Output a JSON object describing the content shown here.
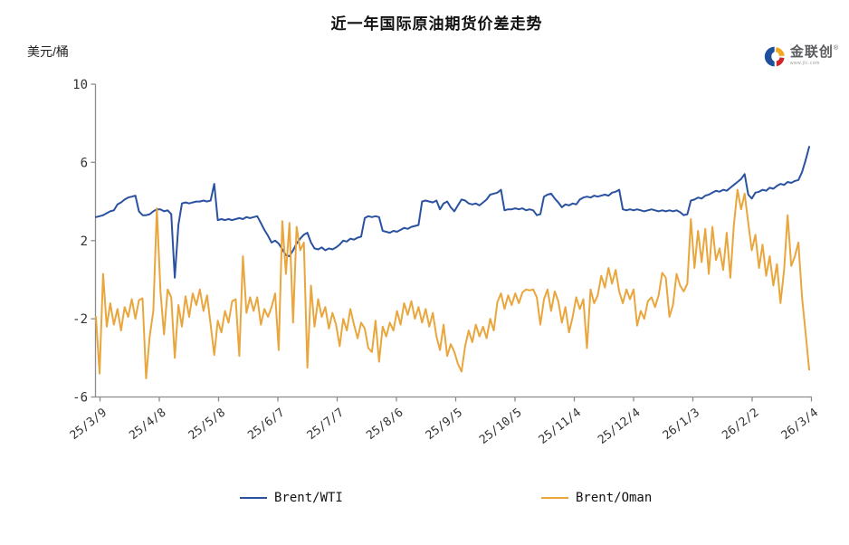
{
  "page": {
    "title": "近一年国际原油期货价差走势",
    "y_unit": "美元/桶"
  },
  "logo": {
    "brand": "金联创",
    "reg_mark": "®",
    "subtext": "www.jlc.com"
  },
  "chart_data": {
    "type": "line",
    "title": "近一年国际原油期货价差走势",
    "xlabel": "",
    "ylabel": "美元/桶",
    "ylim": [
      -6,
      10
    ],
    "yticks": [
      10,
      6,
      2,
      -2,
      -6
    ],
    "xticklabels": [
      "25/3/9",
      "25/4/8",
      "25/5/8",
      "25/6/7",
      "25/7/7",
      "25/8/6",
      "25/9/5",
      "25/10/5",
      "25/11/4",
      "25/12/4",
      "26/1/3",
      "26/2/2",
      "26/3/4"
    ],
    "grid": false,
    "legend_position": "bottom",
    "axis_color": "#8c8c8c",
    "tick_label_color": "#333333",
    "series": [
      {
        "name": "Brent/WTI",
        "color": "#2a52a0",
        "values": [
          3.2,
          3.25,
          3.3,
          3.4,
          3.5,
          3.55,
          3.85,
          3.95,
          4.1,
          4.2,
          4.25,
          4.3,
          3.5,
          3.3,
          3.3,
          3.35,
          3.5,
          3.6,
          3.6,
          3.5,
          3.55,
          3.35,
          0.1,
          2.8,
          3.9,
          3.95,
          3.9,
          3.95,
          4.0,
          4.0,
          4.05,
          4.0,
          4.05,
          4.9,
          3.05,
          3.1,
          3.05,
          3.1,
          3.05,
          3.1,
          3.15,
          3.1,
          3.2,
          3.15,
          3.2,
          3.25,
          2.9,
          2.55,
          2.25,
          1.9,
          2.0,
          1.85,
          1.55,
          1.25,
          1.2,
          1.5,
          1.85,
          2.1,
          2.3,
          2.4,
          1.9,
          1.6,
          1.55,
          1.65,
          1.5,
          1.6,
          1.55,
          1.65,
          1.8,
          2.0,
          1.95,
          2.1,
          2.05,
          2.15,
          2.2,
          3.15,
          3.25,
          3.2,
          3.25,
          3.2,
          2.5,
          2.45,
          2.4,
          2.5,
          2.45,
          2.55,
          2.65,
          2.6,
          2.7,
          2.75,
          2.8,
          4.0,
          4.05,
          4.0,
          3.95,
          4.05,
          3.6,
          3.9,
          4.0,
          3.7,
          3.5,
          3.8,
          4.1,
          4.05,
          3.9,
          3.85,
          3.9,
          3.8,
          3.95,
          4.1,
          4.35,
          4.4,
          4.45,
          4.6,
          3.55,
          3.6,
          3.6,
          3.65,
          3.6,
          3.65,
          3.55,
          3.6,
          3.55,
          3.3,
          3.35,
          4.25,
          4.35,
          4.4,
          4.15,
          3.95,
          3.7,
          3.85,
          3.8,
          3.9,
          3.85,
          4.1,
          4.2,
          4.25,
          4.2,
          4.3,
          4.25,
          4.3,
          4.35,
          4.3,
          4.45,
          4.5,
          4.6,
          3.6,
          3.55,
          3.6,
          3.55,
          3.6,
          3.55,
          3.5,
          3.55,
          3.6,
          3.55,
          3.5,
          3.55,
          3.5,
          3.55,
          3.5,
          3.55,
          3.45,
          3.3,
          3.35,
          4.05,
          4.1,
          4.2,
          4.15,
          4.3,
          4.35,
          4.45,
          4.55,
          4.5,
          4.6,
          4.55,
          4.7,
          4.85,
          5.0,
          5.15,
          5.4,
          4.35,
          4.15,
          4.45,
          4.5,
          4.6,
          4.55,
          4.7,
          4.65,
          4.8,
          4.9,
          4.85,
          5.0,
          4.95,
          5.05,
          5.1,
          5.5,
          6.1,
          6.8
        ]
      },
      {
        "name": "Brent/Oman",
        "color": "#e9a63c",
        "values": [
          -1.9,
          -4.8,
          0.3,
          -2.4,
          -1.2,
          -2.3,
          -1.5,
          -2.6,
          -1.4,
          -1.9,
          -1.0,
          -2.0,
          -1.05,
          -0.95,
          -5.05,
          -2.9,
          -1.6,
          3.65,
          -0.6,
          -2.8,
          -0.5,
          -0.9,
          -4.0,
          -1.3,
          -2.4,
          -0.85,
          -1.9,
          -0.7,
          -1.3,
          -0.5,
          -1.6,
          -0.8,
          -2.3,
          -3.85,
          -2.1,
          -2.7,
          -1.6,
          -2.2,
          -1.1,
          -1.0,
          -3.9,
          1.2,
          -1.7,
          -0.9,
          -1.6,
          -0.9,
          -2.3,
          -1.5,
          -1.9,
          -1.4,
          -0.7,
          -3.6,
          3.0,
          0.3,
          2.9,
          -2.2,
          2.7,
          1.5,
          1.9,
          -4.5,
          -0.3,
          -2.4,
          -1.0,
          -1.9,
          -1.4,
          -2.5,
          -1.7,
          -2.3,
          -3.4,
          -2.0,
          -2.6,
          -1.5,
          -2.3,
          -3.0,
          -2.2,
          -2.5,
          -3.5,
          -3.7,
          -2.1,
          -4.2,
          -2.4,
          -2.9,
          -2.2,
          -2.6,
          -1.6,
          -2.3,
          -1.2,
          -1.8,
          -1.1,
          -2.0,
          -1.4,
          -2.2,
          -1.5,
          -2.4,
          -1.7,
          -2.9,
          -3.6,
          -2.3,
          -3.9,
          -3.3,
          -3.7,
          -4.3,
          -4.7,
          -3.4,
          -2.6,
          -3.2,
          -2.3,
          -2.9,
          -2.4,
          -3.0,
          -2.0,
          -2.6,
          -1.15,
          -0.7,
          -1.5,
          -0.8,
          -1.3,
          -0.7,
          -1.2,
          -0.65,
          -0.5,
          -0.55,
          -0.5,
          -0.9,
          -2.3,
          -1.0,
          -0.5,
          -1.6,
          -0.6,
          -1.1,
          -2.2,
          -1.4,
          -2.7,
          -1.9,
          -0.9,
          -1.5,
          -1.0,
          -3.5,
          -0.5,
          -1.2,
          -0.8,
          0.2,
          -0.4,
          0.6,
          -0.2,
          0.5,
          -0.6,
          -1.2,
          -0.5,
          -1.0,
          -0.5,
          -2.35,
          -1.6,
          -2.0,
          -1.1,
          -0.9,
          -1.4,
          -0.8,
          0.35,
          0.1,
          -1.9,
          -1.3,
          0.3,
          -0.3,
          -0.6,
          -0.2,
          3.1,
          0.6,
          2.5,
          0.9,
          2.6,
          0.3,
          2.7,
          1.0,
          1.6,
          0.5,
          2.4,
          0.1,
          2.8,
          4.6,
          3.6,
          4.4,
          2.9,
          1.5,
          2.3,
          0.6,
          1.8,
          0.2,
          1.2,
          -0.3,
          0.8,
          -1.2,
          0.5,
          3.3,
          0.7,
          1.2,
          1.9,
          -0.9,
          -2.7,
          -4.6
        ]
      }
    ]
  }
}
